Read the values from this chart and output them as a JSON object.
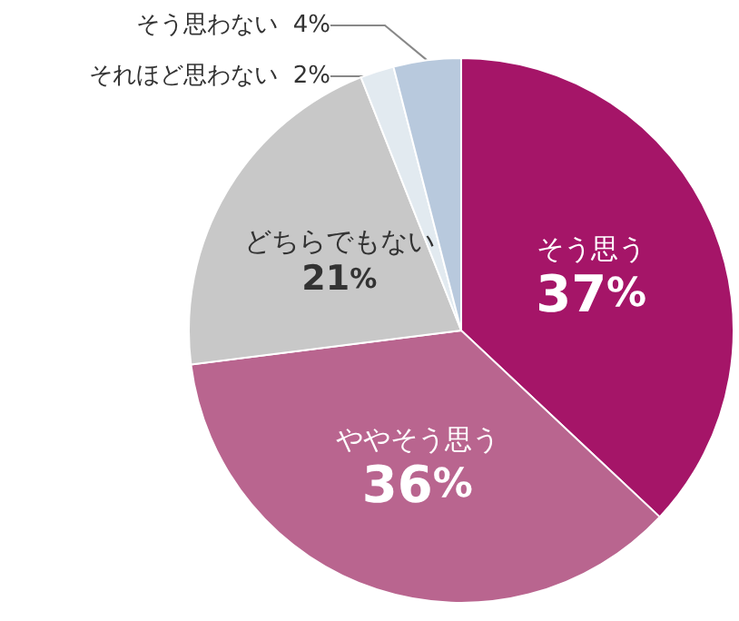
{
  "chart_data": {
    "type": "pie",
    "categories": [
      "そう思う",
      "ややそう思う",
      "どちらでもない",
      "それほど思わない",
      "そう思わない"
    ],
    "values": [
      37,
      36,
      21,
      2,
      4
    ],
    "colors": [
      "#a51568",
      "#b9658f",
      "#c8c8c8",
      "#e2eaf0",
      "#b8c9dd"
    ],
    "value_labels": [
      "37%",
      "36%",
      "21%",
      "2%",
      "4%"
    ]
  }
}
